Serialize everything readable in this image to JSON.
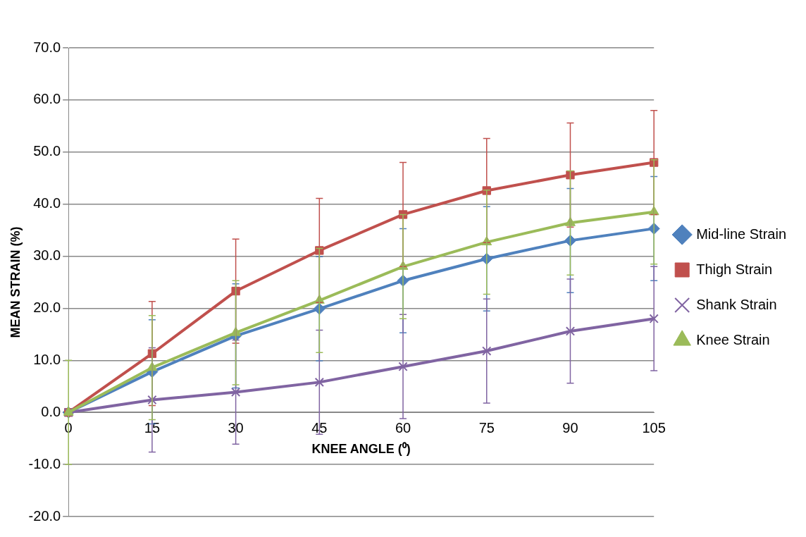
{
  "chart_data": {
    "type": "line",
    "xlabel": "KNEE ANGLE (⁰)",
    "ylabel": "MEAN STRAIN (%)",
    "categories": [
      "0",
      "15",
      "30",
      "45",
      "60",
      "75",
      "90",
      "105"
    ],
    "series": [
      {
        "name": "Mid-line Strain",
        "color": "#4f81bd",
        "marker": "diamond",
        "values": [
          0,
          7.8,
          14.7,
          19.9,
          25.3,
          29.5,
          33,
          35.3
        ],
        "errors": [
          null,
          10,
          10,
          10,
          10,
          10,
          10,
          10
        ]
      },
      {
        "name": "Thigh Strain",
        "color": "#c0504d",
        "marker": "square",
        "values": [
          0,
          11.3,
          23.3,
          31.1,
          38,
          42.6,
          45.6,
          48
        ],
        "errors": [
          null,
          10,
          10,
          10,
          10,
          10,
          10,
          10
        ]
      },
      {
        "name": "Shank Strain",
        "color": "#8064a2",
        "marker": "cross",
        "values": [
          0,
          2.4,
          3.9,
          5.8,
          8.8,
          11.8,
          15.6,
          18
        ],
        "errors": [
          null,
          10,
          10,
          10,
          10,
          10,
          10,
          10
        ]
      },
      {
        "name": "Knee Strain",
        "color": "#9bbb59",
        "marker": "triangle",
        "values": [
          0,
          8.6,
          15.3,
          21.5,
          28,
          32.7,
          36.4,
          38.5
        ],
        "errors": [
          10,
          10,
          10,
          10,
          10,
          10,
          10,
          10
        ]
      }
    ],
    "ylim": [
      -20,
      70
    ],
    "yticks": [
      {
        "value": -20,
        "label": "-20.0"
      },
      {
        "value": -10,
        "label": "-10.0"
      },
      {
        "value": 0,
        "label": "0.0"
      },
      {
        "value": 10,
        "label": "10.0"
      },
      {
        "value": 20,
        "label": "20.0"
      },
      {
        "value": 30,
        "label": "30.0"
      },
      {
        "value": 40,
        "label": "40.0"
      },
      {
        "value": 50,
        "label": "50.0"
      },
      {
        "value": 60,
        "label": "60.0"
      },
      {
        "value": 70,
        "label": "70.0"
      }
    ],
    "grid": "y",
    "legend": "right",
    "line_style": "solid"
  }
}
